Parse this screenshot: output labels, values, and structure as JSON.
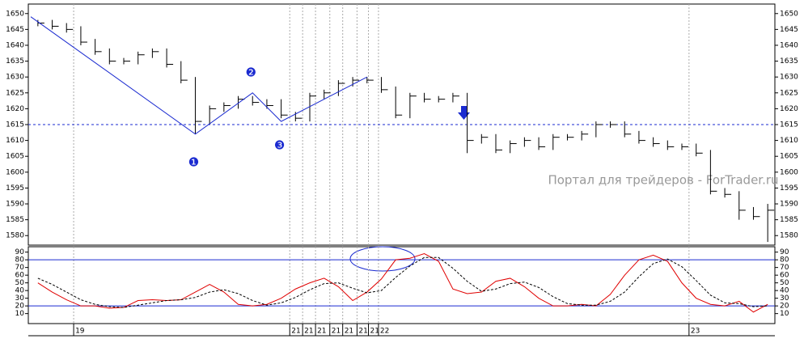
{
  "chart_data": [
    {
      "type": "hlc",
      "watermark": "Портал для трейдеров - ForTrader.ru",
      "xlim": [
        -0.5,
        51.5
      ],
      "ylim": [
        1577,
        1653
      ],
      "yticks": [
        1580,
        1585,
        1590,
        1595,
        1600,
        1605,
        1610,
        1615,
        1620,
        1625,
        1630,
        1635,
        1640,
        1645,
        1650
      ],
      "xticks": [
        {
          "value": 2.5,
          "label": "19"
        },
        {
          "value": 17.6,
          "label": "21"
        },
        {
          "value": 18.5,
          "label": "21"
        },
        {
          "value": 19.4,
          "label": "21"
        },
        {
          "value": 20.4,
          "label": "21"
        },
        {
          "value": 21.3,
          "label": "21"
        },
        {
          "value": 22.3,
          "label": "21"
        },
        {
          "value": 23.1,
          "label": "21"
        },
        {
          "value": 23.8,
          "label": "22"
        },
        {
          "value": 45.5,
          "label": "23"
        }
      ],
      "color": "#000000",
      "high": [
        1648,
        1648,
        1647,
        1646,
        1642,
        1639,
        1636,
        1638,
        1639,
        1639,
        1635,
        1630,
        1621,
        1622,
        1624,
        1624,
        1623,
        1623,
        1619,
        1625,
        1626,
        1629,
        1630,
        1630,
        1630,
        1627,
        1625,
        1625,
        1624,
        1625,
        1625,
        1612,
        1612,
        1610,
        1611,
        1611,
        1612,
        1612,
        1613,
        1616,
        1616,
        1616,
        1613,
        1611,
        1610,
        1609,
        1609,
        1607,
        1595,
        1594,
        1589,
        1590
      ],
      "low": [
        1646,
        1645,
        1644,
        1640,
        1637,
        1634,
        1634,
        1634,
        1636,
        1633,
        1628,
        1612,
        1615,
        1619,
        1620,
        1621,
        1620,
        1617,
        1616,
        1616,
        1623,
        1624,
        1627,
        1628,
        1625,
        1617,
        1617,
        1622,
        1622,
        1622,
        1606,
        1609,
        1606,
        1606,
        1608,
        1607,
        1607,
        1610,
        1610,
        1611,
        1614,
        1611,
        1609,
        1608,
        1607,
        1607,
        1605,
        1593,
        1592,
        1585,
        1585,
        1578
      ],
      "close": [
        1647,
        1646,
        1645,
        1641,
        1638,
        1635,
        1635,
        1637,
        1638,
        1634,
        1629,
        1616,
        1620,
        1621,
        1623,
        1622,
        1621,
        1618,
        1617,
        1624,
        1625,
        1628,
        1629,
        1629,
        1626,
        1618,
        1624,
        1623,
        1623,
        1624,
        1610,
        1611,
        1607,
        1609,
        1610,
        1608,
        1611,
        1611,
        1612,
        1615,
        1615,
        1612,
        1610,
        1609,
        1608,
        1608,
        1606,
        1594,
        1593,
        1588,
        1586,
        1588
      ],
      "hline": 1615,
      "trend": {
        "color": "#1a2ad0",
        "x": [
          -0.5,
          11,
          15,
          17,
          23
        ],
        "y": [
          1649,
          1612,
          1625,
          1616,
          1630
        ]
      },
      "markers": [
        "❶",
        "❷",
        "❸"
      ]
    },
    {
      "type": "oscillator",
      "xlim": [
        -0.5,
        51.5
      ],
      "ylim": [
        -3,
        97
      ],
      "yticks": [
        10,
        20,
        30,
        40,
        50,
        60,
        70,
        80,
        90
      ],
      "levels": [
        20,
        80
      ],
      "series": [
        {
          "color": "#e00000",
          "values": [
            50,
            38,
            28,
            20,
            20,
            17,
            18,
            27,
            28,
            27,
            28,
            38,
            48,
            38,
            22,
            20,
            22,
            30,
            42,
            50,
            56,
            45,
            27,
            38,
            55,
            80,
            82,
            88,
            78,
            42,
            36,
            38,
            52,
            56,
            45,
            30,
            20,
            20,
            22,
            20,
            35,
            60,
            80,
            86,
            78,
            50,
            30,
            22,
            20,
            26,
            12,
            22
          ]
        },
        {
          "color": "#000000",
          "values": [
            56,
            48,
            38,
            28,
            22,
            19,
            18,
            21,
            24,
            27,
            28,
            31,
            38,
            41,
            36,
            27,
            21,
            24,
            31,
            41,
            49,
            50,
            43,
            37,
            40,
            57,
            72,
            83,
            83,
            69,
            52,
            39,
            42,
            49,
            51,
            44,
            32,
            23,
            21,
            21,
            26,
            38,
            58,
            75,
            81,
            71,
            53,
            34,
            24,
            23,
            19,
            20
          ]
        }
      ]
    }
  ]
}
